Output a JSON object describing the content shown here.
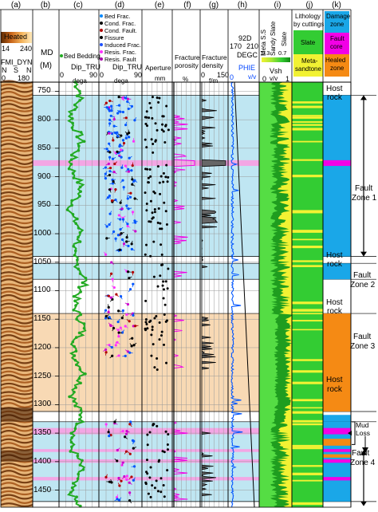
{
  "columns": [
    {
      "id": "a",
      "letter": "(a)"
    },
    {
      "id": "b",
      "letter": "(b)"
    },
    {
      "id": "c",
      "letter": "(c)"
    },
    {
      "id": "d",
      "letter": "(d)"
    },
    {
      "id": "e",
      "letter": "(e)"
    },
    {
      "id": "f",
      "letter": "(f)"
    },
    {
      "id": "g",
      "letter": "(g)"
    },
    {
      "id": "h",
      "letter": "(h)"
    },
    {
      "id": "i",
      "letter": "(i)"
    },
    {
      "id": "j",
      "letter": "(j)"
    },
    {
      "id": "k",
      "letter": "(k)"
    }
  ],
  "track_a": {
    "scale_title": "Heated",
    "scale_min": "14",
    "scale_max": "240",
    "curve_name": "FMI_DYN",
    "compass": [
      "N",
      "S",
      "N"
    ],
    "azimuth_min": "0",
    "azimuth_max": "180"
  },
  "track_b": {
    "title": "MD",
    "unit": "(M)"
  },
  "track_c": {
    "legend": "Bed Bedding",
    "curve": "Dip_TRU",
    "min": "0",
    "max": "90",
    "unit": "dega"
  },
  "track_d": {
    "legend": [
      "Bed Frac.",
      "Cond. Frac.",
      "Cond. Fault.",
      "Fissure",
      "Induced Frac.",
      "Resis. Frac.",
      "Resis. Fault"
    ],
    "curve": "Dip_TRU",
    "min": "0",
    "max": "90",
    "unit": "dega"
  },
  "track_e": {
    "title": "Aperture",
    "unit": "mm"
  },
  "track_f": {
    "title": [
      "Fracture",
      "porosity"
    ],
    "unit": "%"
  },
  "track_g": {
    "title": [
      "Fracture",
      "density"
    ],
    "min": "0",
    "max": "150",
    "unit": "f/m"
  },
  "track_h": {
    "top_label": "92D",
    "scale_min": "170",
    "scale_max": "210",
    "temp_curve": "DEGC",
    "por_curve": "PHIE",
    "por_min": "0",
    "por_unit": "v/v"
  },
  "track_i": {
    "lith_labels": [
      "Meta S.S",
      "Sandy Slate",
      "Slate"
    ],
    "ticks": [
      "0.3",
      "0.7"
    ],
    "curve": "Vsh",
    "min": "0",
    "unit": "v/v",
    "max": "1"
  },
  "track_j": {
    "title": [
      "Lithology",
      "by cuttings"
    ],
    "slate": "Slate",
    "metasand": [
      "Meta-",
      "sandtone"
    ]
  },
  "track_k": {
    "title": [
      "Damage",
      "zone"
    ],
    "fault_core": [
      "Fault",
      "core"
    ],
    "healed": [
      "Healed",
      "zone"
    ]
  },
  "depth": {
    "ticks": [
      "750",
      "800",
      "850",
      "900",
      "950",
      "1000",
      "1050",
      "1100",
      "1150",
      "1200",
      "1250",
      "1300",
      "1350",
      "1400",
      "1450"
    ]
  },
  "zones": [
    {
      "label": [
        "Host",
        "rock"
      ]
    },
    {
      "label": [
        "Fault",
        "Zone 1"
      ]
    },
    {
      "label": [
        "Host",
        "rock"
      ]
    },
    {
      "label": [
        "Fault",
        "Zone 2"
      ]
    },
    {
      "label": [
        "Host",
        "rock"
      ]
    },
    {
      "label": [
        "Fault",
        "Zone 3"
      ]
    },
    {
      "label": [
        "Host",
        "rock"
      ]
    },
    {
      "label": [
        "Mud",
        "Loss"
      ]
    },
    {
      "label": [
        "Fault",
        "Zone 4"
      ]
    }
  ],
  "colors": {
    "fault_zone": "#bfe6f2",
    "healed_zone": "#f8d9b4",
    "fault_core": "#f3a6e4",
    "damage_zone": "#1aa7e8",
    "core_magenta": "#f200e6",
    "healed_orange": "#f58a14",
    "lith_green": "#33cc33",
    "lith_yellow": "#f2f233",
    "bedding_green": "#22aa22",
    "frac_blue": "#0055ff",
    "frac_black": "#000000"
  }
}
